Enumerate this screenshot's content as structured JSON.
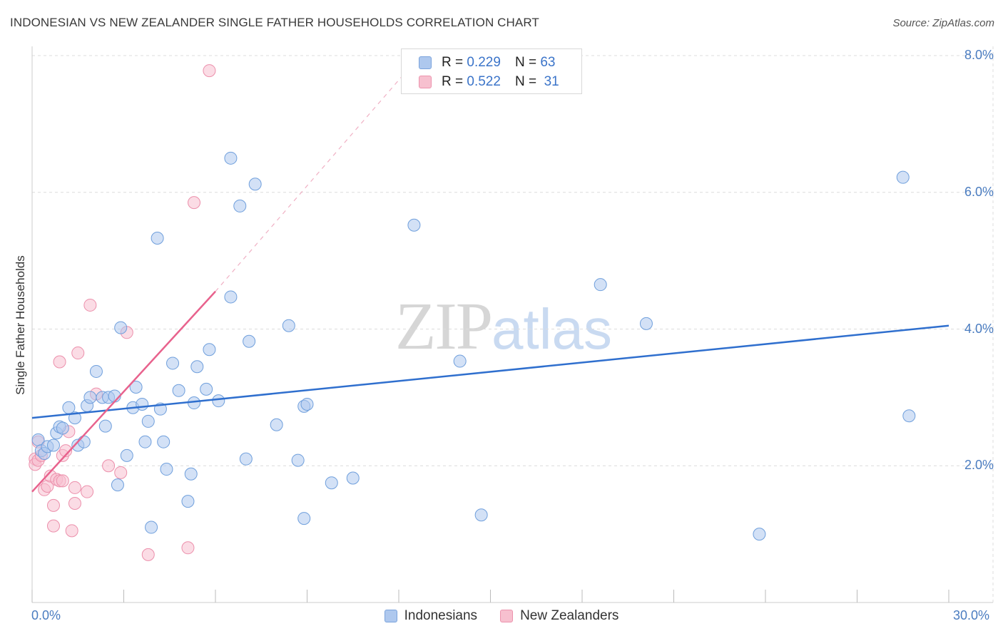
{
  "chart_data": {
    "type": "scatter",
    "title": "INDONESIAN VS NEW ZEALANDER SINGLE FATHER HOUSEHOLDS CORRELATION CHART",
    "source": "Source: ZipAtlas.com",
    "xlabel": "",
    "ylabel": "Single Father Households",
    "xlim": [
      0,
      30
    ],
    "ylim": [
      0,
      8.3
    ],
    "x_tick_labels": [
      "0.0%",
      "30.0%"
    ],
    "y_ticks": [
      2,
      4,
      6,
      8
    ],
    "y_tick_labels": [
      "2.0%",
      "4.0%",
      "6.0%",
      "8.0%"
    ],
    "watermark": {
      "part1": "ZIP",
      "part2": "atlas"
    },
    "colors": {
      "blue_fill": "#aec8ee",
      "blue_stroke": "#6f9fdc",
      "blue_line": "#2f6fce",
      "pink_fill": "#f7c0cf",
      "pink_stroke": "#ec8fab",
      "pink_line": "#e8628d",
      "grid": "#dcdcdc"
    },
    "legend": {
      "rows": [
        {
          "r_label": "R = ",
          "r_value": "0.229",
          "n_label": "N = ",
          "n_value": "63"
        },
        {
          "r_label": "R = ",
          "r_value": "0.522",
          "n_label": "N = ",
          "n_value": "31"
        }
      ]
    },
    "series": [
      {
        "name": "Indonesians",
        "color": "blue",
        "trend": {
          "x": [
            0,
            30
          ],
          "y": [
            2.7,
            4.05
          ]
        },
        "points": [
          [
            0.2,
            2.38
          ],
          [
            0.3,
            2.22
          ],
          [
            0.4,
            2.18
          ],
          [
            0.5,
            2.28
          ],
          [
            0.7,
            2.3
          ],
          [
            0.8,
            2.48
          ],
          [
            0.9,
            2.57
          ],
          [
            1.0,
            2.55
          ],
          [
            1.2,
            2.85
          ],
          [
            1.4,
            2.7
          ],
          [
            1.5,
            2.3
          ],
          [
            1.7,
            2.35
          ],
          [
            1.8,
            2.88
          ],
          [
            1.9,
            3.0
          ],
          [
            2.1,
            3.38
          ],
          [
            2.3,
            3.0
          ],
          [
            2.4,
            2.58
          ],
          [
            2.5,
            3.0
          ],
          [
            2.7,
            3.02
          ],
          [
            2.8,
            1.72
          ],
          [
            2.9,
            4.02
          ],
          [
            3.1,
            2.15
          ],
          [
            3.3,
            2.85
          ],
          [
            3.4,
            3.15
          ],
          [
            3.6,
            2.9
          ],
          [
            3.7,
            2.35
          ],
          [
            3.8,
            2.65
          ],
          [
            3.9,
            1.1
          ],
          [
            4.1,
            5.33
          ],
          [
            4.2,
            2.83
          ],
          [
            4.3,
            2.35
          ],
          [
            4.4,
            1.95
          ],
          [
            4.6,
            3.5
          ],
          [
            4.8,
            3.1
          ],
          [
            5.1,
            1.48
          ],
          [
            5.2,
            1.88
          ],
          [
            5.3,
            2.92
          ],
          [
            5.4,
            3.45
          ],
          [
            5.7,
            3.12
          ],
          [
            5.8,
            3.7
          ],
          [
            6.1,
            2.95
          ],
          [
            6.5,
            6.5
          ],
          [
            6.5,
            4.47
          ],
          [
            6.8,
            5.8
          ],
          [
            7.0,
            2.1
          ],
          [
            7.1,
            3.82
          ],
          [
            7.3,
            6.12
          ],
          [
            8.0,
            2.6
          ],
          [
            8.4,
            4.05
          ],
          [
            8.7,
            2.08
          ],
          [
            8.9,
            1.23
          ],
          [
            8.9,
            2.87
          ],
          [
            9.0,
            2.9
          ],
          [
            9.8,
            1.75
          ],
          [
            10.5,
            1.82
          ],
          [
            12.5,
            5.52
          ],
          [
            14.0,
            3.53
          ],
          [
            14.7,
            1.28
          ],
          [
            18.6,
            4.65
          ],
          [
            20.1,
            4.08
          ],
          [
            23.8,
            1.0
          ],
          [
            28.5,
            6.22
          ],
          [
            28.7,
            2.73
          ]
        ]
      },
      {
        "name": "New Zealanders",
        "color": "pink",
        "trend": {
          "x": [
            0,
            6.0
          ],
          "y": [
            1.62,
            4.55
          ]
        },
        "trend_dashed": {
          "x": [
            6.0,
            12.5
          ],
          "y": [
            4.55,
            7.9
          ]
        },
        "points": [
          [
            0.1,
            2.1
          ],
          [
            0.1,
            2.02
          ],
          [
            0.2,
            2.35
          ],
          [
            0.2,
            2.08
          ],
          [
            0.3,
            2.15
          ],
          [
            0.4,
            1.65
          ],
          [
            0.5,
            1.7
          ],
          [
            0.6,
            1.85
          ],
          [
            0.7,
            1.42
          ],
          [
            0.7,
            1.12
          ],
          [
            0.8,
            1.8
          ],
          [
            0.9,
            1.78
          ],
          [
            1.0,
            2.15
          ],
          [
            1.0,
            1.78
          ],
          [
            1.1,
            2.22
          ],
          [
            1.2,
            2.5
          ],
          [
            1.3,
            1.05
          ],
          [
            1.4,
            1.45
          ],
          [
            1.4,
            1.68
          ],
          [
            1.5,
            3.65
          ],
          [
            1.8,
            1.62
          ],
          [
            1.9,
            4.35
          ],
          [
            2.1,
            3.05
          ],
          [
            2.5,
            2.0
          ],
          [
            2.9,
            1.9
          ],
          [
            3.1,
            3.95
          ],
          [
            3.8,
            0.7
          ],
          [
            5.1,
            0.8
          ],
          [
            5.3,
            5.85
          ],
          [
            5.8,
            7.78
          ],
          [
            0.9,
            3.52
          ]
        ]
      }
    ]
  }
}
